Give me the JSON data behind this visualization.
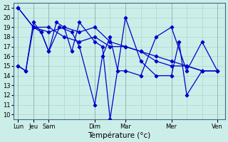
{
  "background_color": "#cceee8",
  "grid_color": "#aad8d0",
  "line_color": "#0000cc",
  "xlabel": "Température (°c)",
  "ylim": [
    9.5,
    21.5
  ],
  "yticks": [
    10,
    11,
    12,
    13,
    14,
    15,
    16,
    17,
    18,
    19,
    20,
    21
  ],
  "day_labels": [
    "Lun",
    "Jeu",
    "Sam",
    "Dim",
    "Mar",
    "Mer",
    "Ven"
  ],
  "day_positions": [
    0,
    1,
    2,
    5,
    7,
    10,
    13
  ],
  "xlim": [
    -0.3,
    13.5
  ],
  "line1_x": [
    0,
    1,
    2,
    3,
    4,
    5,
    6,
    7,
    8,
    9,
    10,
    11,
    12,
    13
  ],
  "line1_y": [
    21,
    19,
    18.5,
    19,
    18.5,
    19,
    17.5,
    17,
    16.5,
    16,
    15.5,
    15,
    14.5,
    14.5
  ],
  "line2_x": [
    0,
    1,
    2,
    3,
    4,
    5,
    6,
    7,
    8,
    9,
    10,
    11,
    12,
    13
  ],
  "line2_y": [
    21,
    19,
    19,
    18,
    17.5,
    18,
    17,
    17,
    16.5,
    15.5,
    15,
    15,
    14.5,
    14.5
  ],
  "line3_x": [
    0,
    0.5,
    1,
    1.5,
    2,
    2.5,
    3,
    3.5,
    4,
    5,
    5.5,
    6,
    7,
    8,
    9,
    10,
    10.5,
    11,
    12,
    13
  ],
  "line3_y": [
    15,
    14.5,
    19.5,
    18.5,
    16.5,
    19.5,
    19,
    16.5,
    19.5,
    17.5,
    17,
    9.5,
    20,
    15.5,
    14,
    14,
    17.5,
    12,
    14.5,
    14.5
  ],
  "line4_x": [
    0,
    0.5,
    1,
    1.5,
    2,
    2.7,
    3.5,
    4,
    5,
    5.5,
    6,
    6.5,
    7,
    8,
    9,
    10,
    11,
    12,
    13
  ],
  "line4_y": [
    15,
    14.5,
    19,
    18.5,
    16.5,
    19,
    18.5,
    17,
    11,
    16,
    18,
    14.5,
    14.5,
    14,
    18,
    19,
    14.5,
    17.5,
    14.5
  ]
}
